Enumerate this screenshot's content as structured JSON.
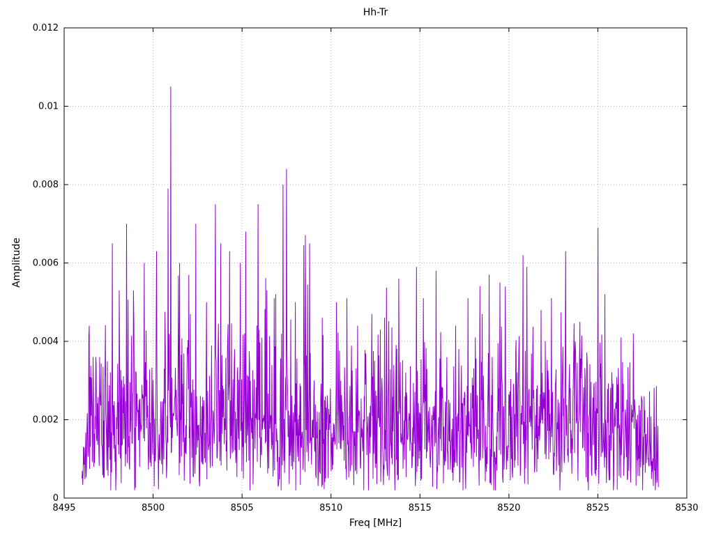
{
  "title": "Hh-Tr",
  "chart_data": {
    "type": "line",
    "title": "Hh-Tr",
    "xlabel": "Freq [MHz]",
    "ylabel": "Amplitude",
    "xlim": [
      8495,
      8530
    ],
    "ylim": [
      0,
      0.012
    ],
    "grid": true,
    "legend": "none",
    "line_color": "#9400d3",
    "grid_color": "#b5b5b5",
    "border_color": "#000000",
    "x_ticks": [
      8495,
      8500,
      8505,
      8510,
      8515,
      8520,
      8525,
      8530
    ],
    "x_tick_labels": [
      "8495",
      "8500",
      "8505",
      "8510",
      "8515",
      "8520",
      "8525",
      "8530"
    ],
    "y_ticks": [
      0,
      0.002,
      0.004,
      0.006,
      0.008,
      0.01,
      0.012
    ],
    "y_tick_labels": [
      "0",
      "0.002",
      "0.004",
      "0.006",
      "0.008",
      "0.01",
      "0.012"
    ],
    "signal": {
      "description": "Dense noisy amplitude spectrum trace from 8496 to 8528.4 MHz, typical values 0.001-0.004 with spikes to 0.007 and a maximum of 0.0105 near 8501 MHz",
      "x_start": 8496.0,
      "x_end": 8528.4,
      "n_points": 1500,
      "seed": 42,
      "min_amplitude": 0.0002,
      "max_noise_amplitude": 0.0075,
      "envelope_sigma": [
        [
          8496.0,
          0.0005
        ],
        [
          8496.3,
          0.0012
        ],
        [
          8497.0,
          0.0015
        ],
        [
          8499.0,
          0.0017
        ],
        [
          8502.0,
          0.0017
        ],
        [
          8506.0,
          0.0017
        ],
        [
          8509.0,
          0.0015
        ],
        [
          8513.0,
          0.0015
        ],
        [
          8516.0,
          0.0015
        ],
        [
          8521.0,
          0.0016
        ],
        [
          8525.0,
          0.0016
        ],
        [
          8526.5,
          0.0014
        ],
        [
          8527.6,
          0.0011
        ],
        [
          8528.4,
          0.0008
        ]
      ],
      "peaks": [
        [
          8496.4,
          0.0044
        ],
        [
          8497.0,
          0.0036
        ],
        [
          8497.7,
          0.0065
        ],
        [
          8498.1,
          0.0053
        ],
        [
          8498.5,
          0.007
        ],
        [
          8498.9,
          0.0053
        ],
        [
          8499.5,
          0.006
        ],
        [
          8500.2,
          0.0063
        ],
        [
          8500.85,
          0.0079
        ],
        [
          8501.0,
          0.0105
        ],
        [
          8501.5,
          0.006
        ],
        [
          8502.0,
          0.0057
        ],
        [
          8502.4,
          0.007
        ],
        [
          8503.0,
          0.005
        ],
        [
          8503.5,
          0.0075
        ],
        [
          8503.8,
          0.0065
        ],
        [
          8504.3,
          0.0063
        ],
        [
          8504.9,
          0.006
        ],
        [
          8505.2,
          0.0068
        ],
        [
          8505.9,
          0.0075
        ],
        [
          8506.4,
          0.0053
        ],
        [
          8506.9,
          0.0052
        ],
        [
          8507.3,
          0.008
        ],
        [
          8507.5,
          0.0084
        ],
        [
          8508.0,
          0.005
        ],
        [
          8508.8,
          0.0065
        ],
        [
          8509.5,
          0.0046
        ],
        [
          8510.3,
          0.005
        ],
        [
          8510.9,
          0.0051
        ],
        [
          8511.5,
          0.0044
        ],
        [
          8512.3,
          0.0047
        ],
        [
          8513.0,
          0.0046
        ],
        [
          8513.8,
          0.0056
        ],
        [
          8514.8,
          0.0059
        ],
        [
          8515.2,
          0.0051
        ],
        [
          8515.9,
          0.0058
        ],
        [
          8517.0,
          0.0044
        ],
        [
          8517.7,
          0.0051
        ],
        [
          8518.5,
          0.0047
        ],
        [
          8518.9,
          0.0057
        ],
        [
          8519.5,
          0.0055
        ],
        [
          8519.8,
          0.0054
        ],
        [
          8520.8,
          0.0062
        ],
        [
          8521.0,
          0.0059
        ],
        [
          8521.8,
          0.0048
        ],
        [
          8522.4,
          0.0051
        ],
        [
          8523.2,
          0.0063
        ],
        [
          8524.0,
          0.0045
        ],
        [
          8525.0,
          0.0069
        ],
        [
          8525.4,
          0.0052
        ],
        [
          8526.3,
          0.0041
        ],
        [
          8527.0,
          0.0042
        ],
        [
          8527.6,
          0.0026
        ]
      ]
    }
  }
}
